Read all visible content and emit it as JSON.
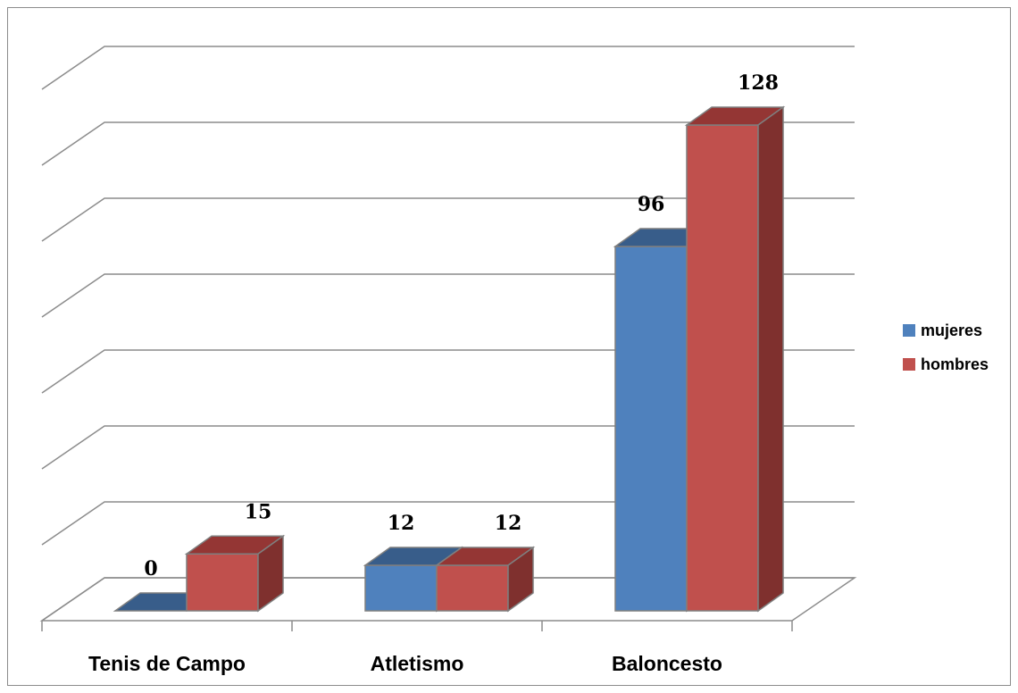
{
  "chart_data": {
    "type": "bar",
    "subtype": "3d-clustered-column",
    "title": "",
    "xlabel": "",
    "ylabel": "",
    "categories": [
      "Tenis de Campo",
      "Atletismo",
      "Baloncesto"
    ],
    "series": [
      {
        "name": "mujeres",
        "values": [
          0,
          12,
          96
        ],
        "color": "#4f81bd",
        "top_color": "#385d8a",
        "side_color": "#2c4d75"
      },
      {
        "name": "hombres",
        "values": [
          15,
          12,
          128
        ],
        "color": "#c0504d",
        "top_color": "#943634",
        "side_color": "#7f302e"
      }
    ],
    "ylim": [
      0,
      140
    ],
    "y_gridline_step": 20,
    "y_tick_labels_visible": false,
    "gridlines": true,
    "legend_position": "right",
    "data_labels": true
  }
}
